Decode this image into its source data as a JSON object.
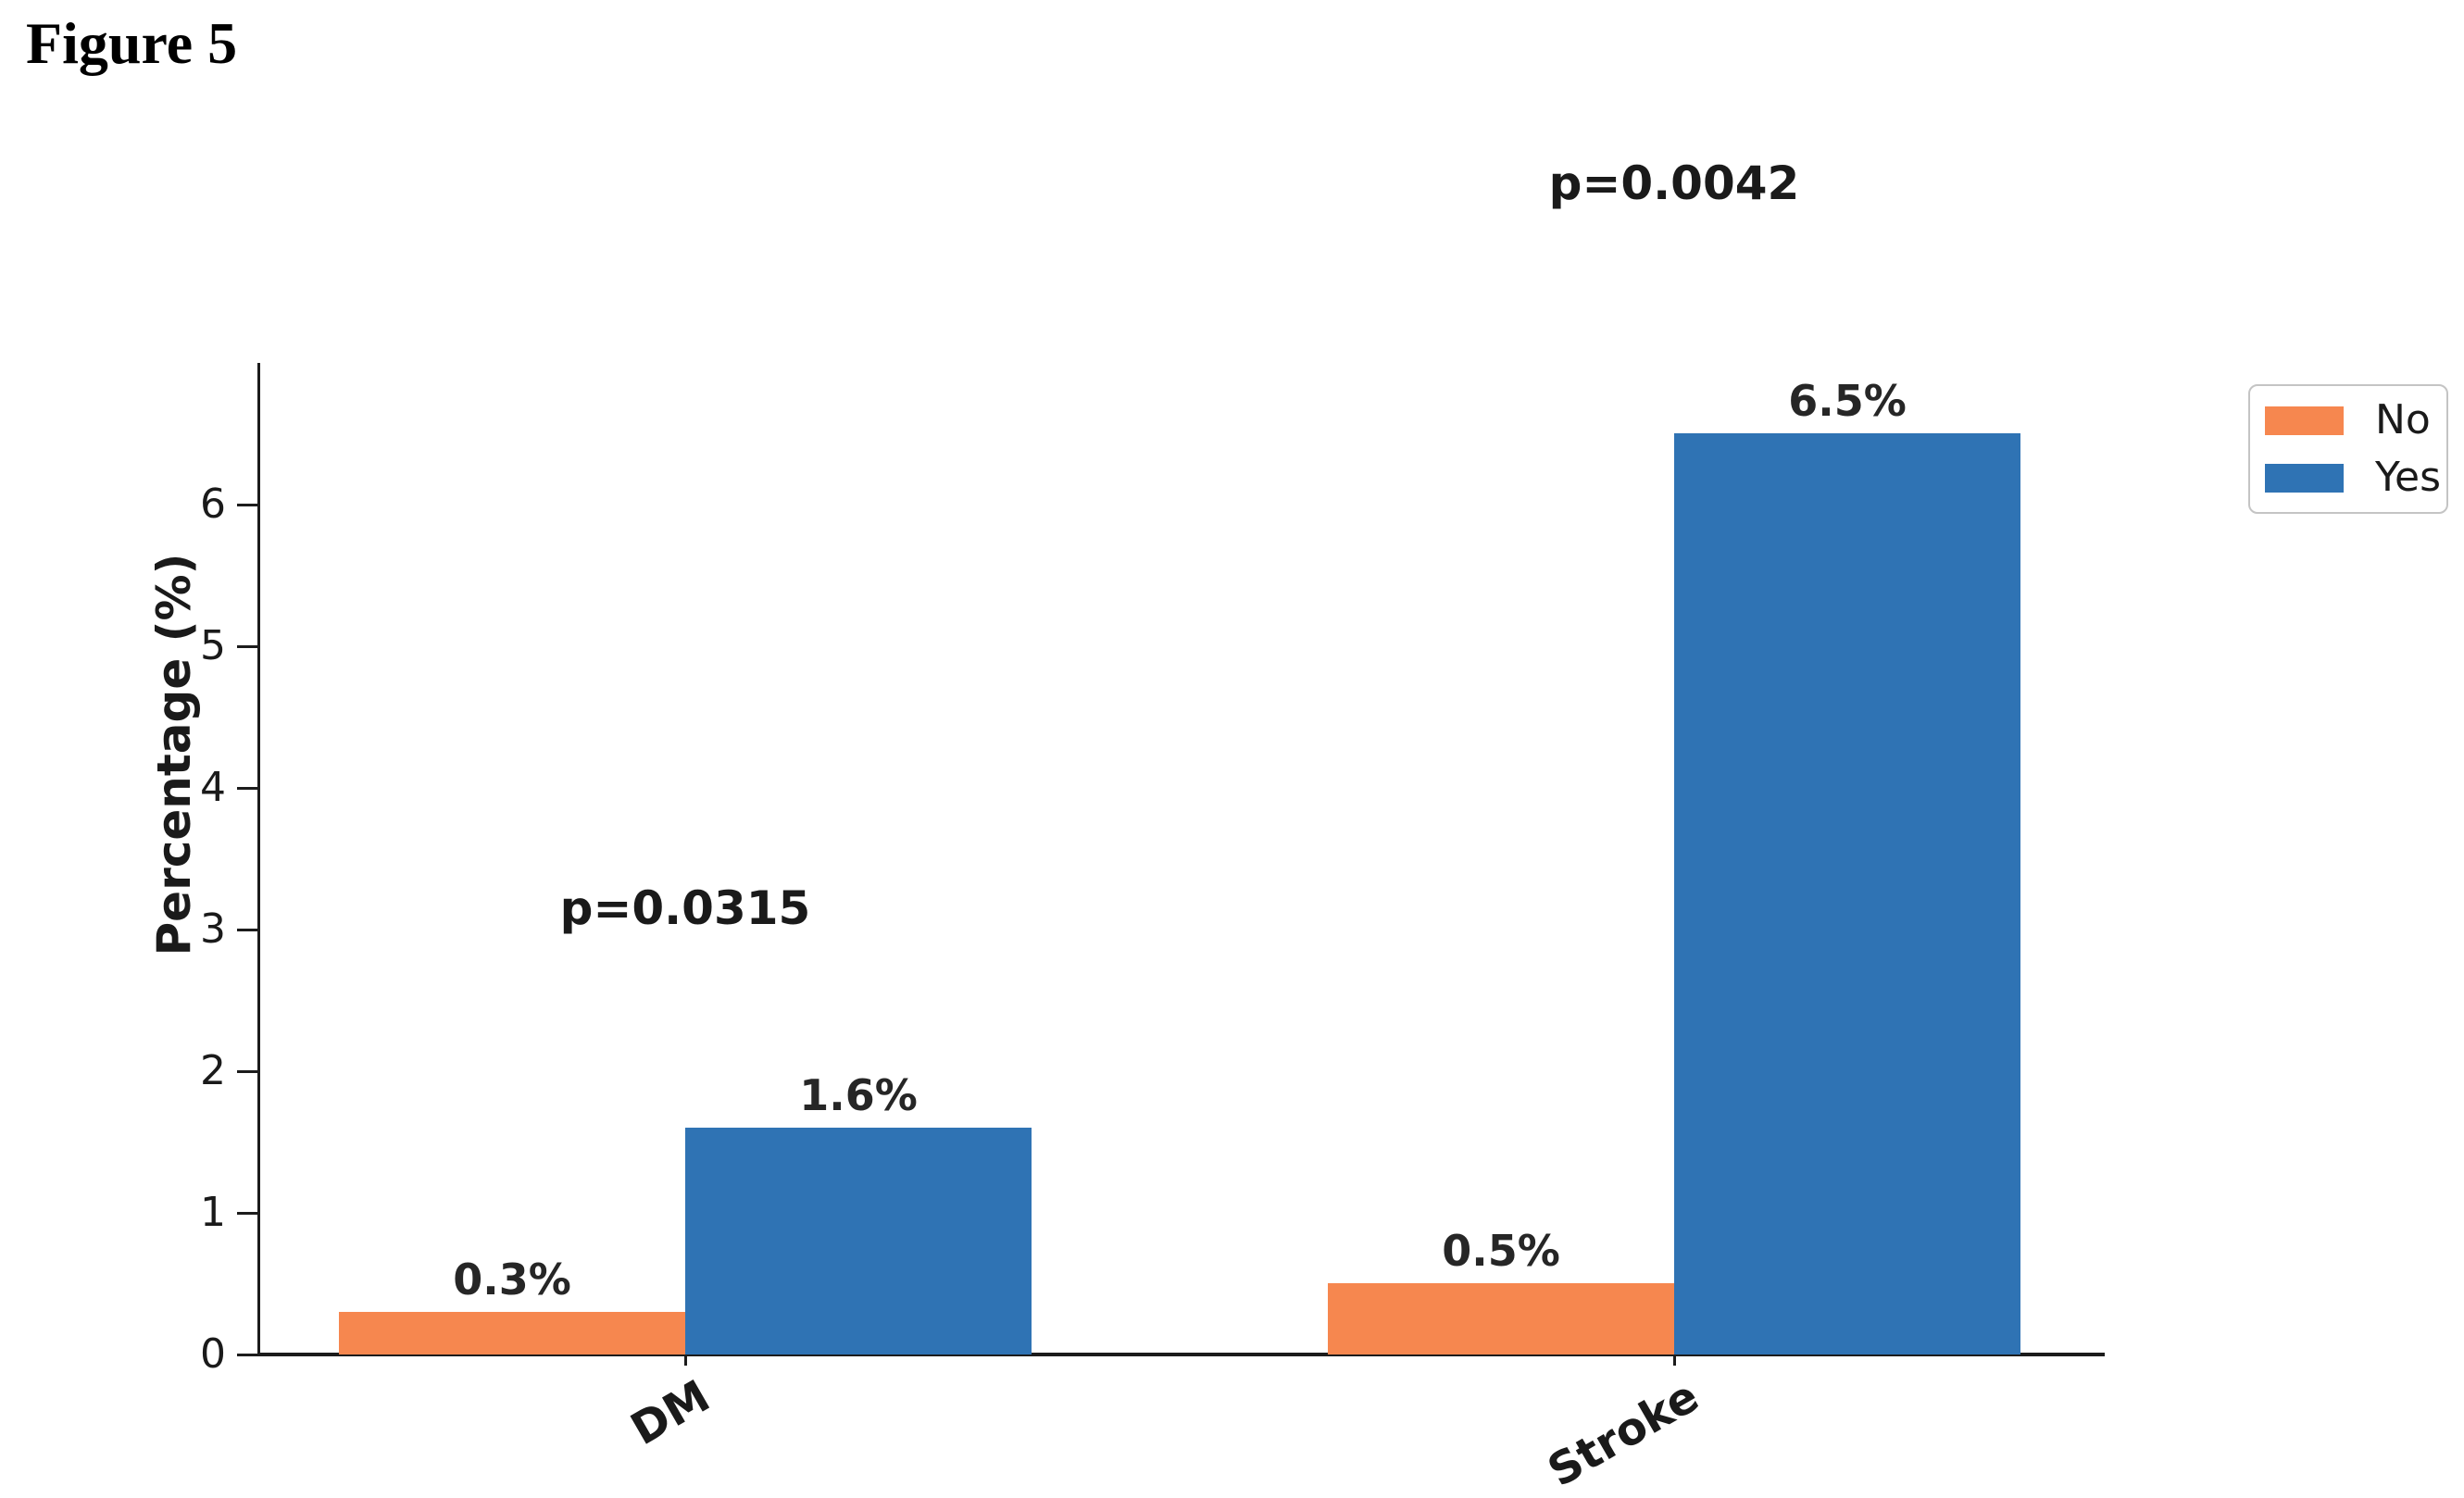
{
  "figure_label": "Figure 5",
  "chart_data": {
    "type": "bar",
    "title": "",
    "xlabel": "",
    "ylabel": "Percentage (%)",
    "ylim": [
      0,
      7
    ],
    "yticks": [
      0,
      1,
      2,
      3,
      4,
      5,
      6
    ],
    "grid": false,
    "categories": [
      "DM",
      "Stroke"
    ],
    "series": [
      {
        "name": "No",
        "color": "#f6874f",
        "values": [
          0.3,
          0.5
        ],
        "labels": [
          "0.3%",
          "0.5%"
        ]
      },
      {
        "name": "Yes",
        "color": "#2f73b4",
        "values": [
          1.6,
          6.5
        ],
        "labels": [
          "1.6%",
          "6.5%"
        ]
      }
    ],
    "annotations": [
      {
        "text": "p=0.0315",
        "category": "DM",
        "y": 3.15
      },
      {
        "text": "p=0.0042",
        "category": "Stroke",
        "y": 8.27
      }
    ],
    "legend": {
      "position": "upper right",
      "entries": [
        "No",
        "Yes"
      ]
    }
  }
}
